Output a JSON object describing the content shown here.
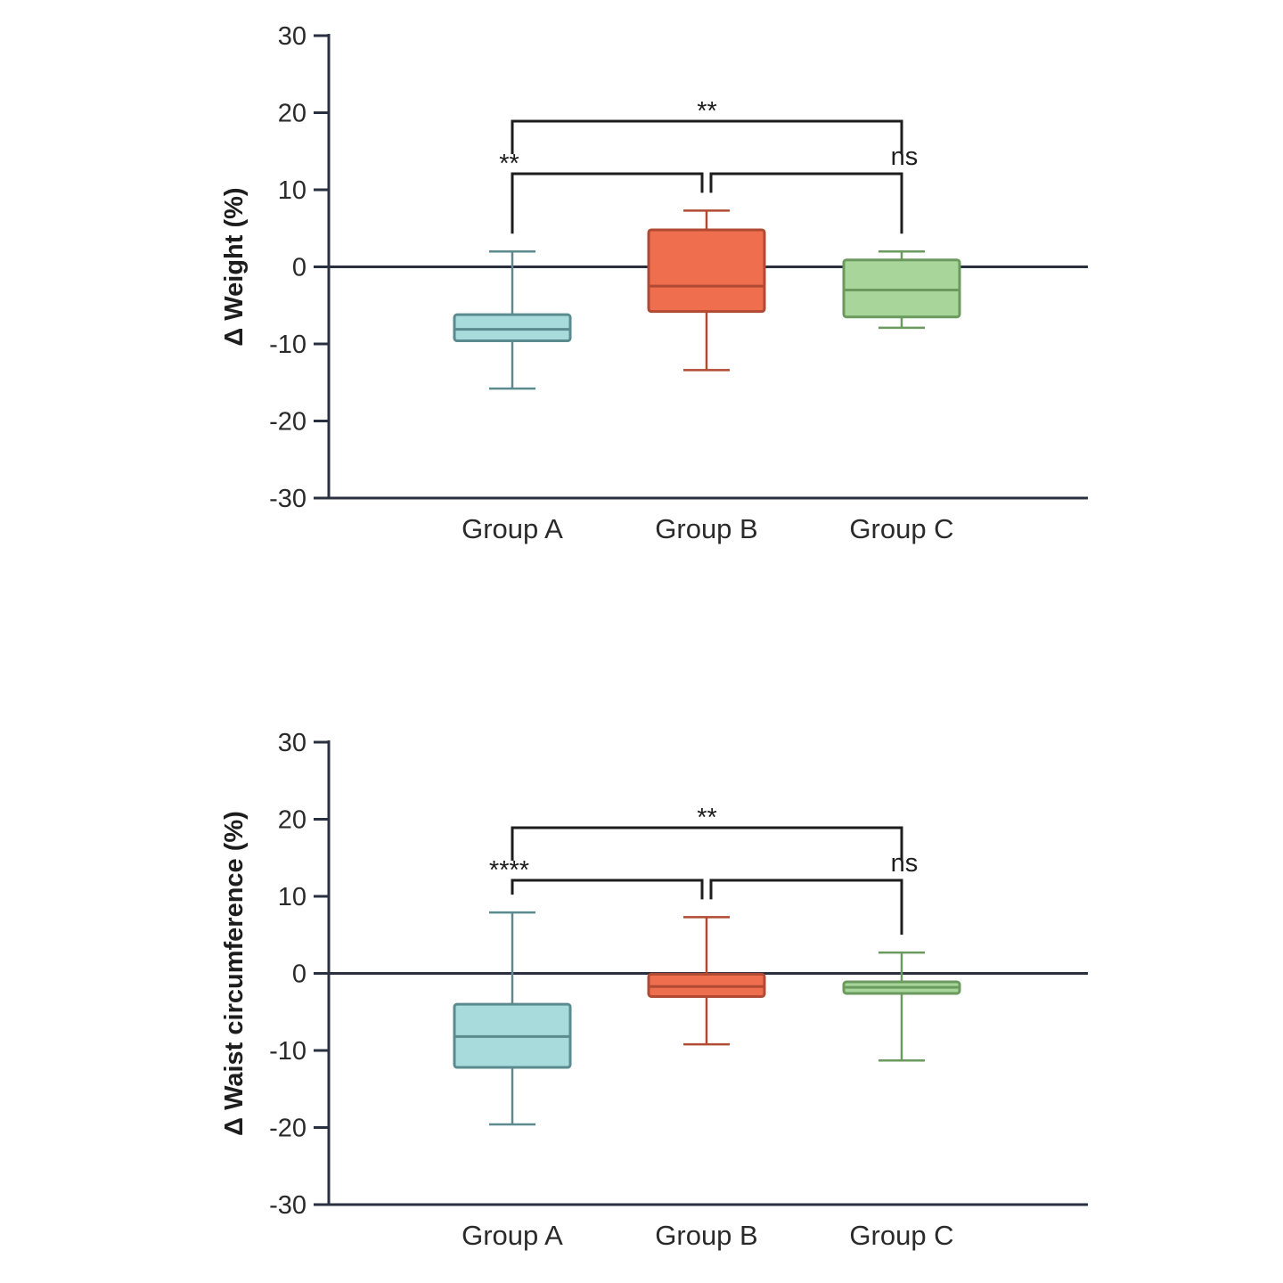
{
  "chart_data": [
    {
      "type": "box",
      "ylabel": "Δ Weight (%)",
      "ylim": [
        -30,
        30
      ],
      "yticks": [
        30,
        20,
        10,
        0,
        -10,
        -20,
        -30
      ],
      "categories": [
        "Group A",
        "Group B",
        "Group C"
      ],
      "colors": {
        "Group A": {
          "fill": "#a8dcdc",
          "stroke": "#5b8a8f"
        },
        "Group B": {
          "fill": "#ee6e4e",
          "stroke": "#b04a33"
        },
        "Group C": {
          "fill": "#a8d69a",
          "stroke": "#6a9a5e"
        }
      },
      "boxes": [
        {
          "category": "Group A",
          "min": -15.8,
          "q1": -9.6,
          "median": -8.1,
          "q3": -6.2,
          "max": 2.0
        },
        {
          "category": "Group B",
          "min": -13.4,
          "q1": -5.8,
          "median": -2.5,
          "q3": 4.8,
          "max": 7.3
        },
        {
          "category": "Group C",
          "min": -7.9,
          "q1": -6.5,
          "median": -3.0,
          "q3": 0.9,
          "max": 2.0
        }
      ],
      "comparisons": [
        {
          "from": "Group A",
          "to": "Group B",
          "label": "**"
        },
        {
          "from": "Group B",
          "to": "Group C",
          "label": "ns"
        },
        {
          "from": "Group A",
          "to": "Group C",
          "label": "**"
        }
      ]
    },
    {
      "type": "box",
      "ylabel": "Δ Waist circumference (%)",
      "ylim": [
        -30,
        30
      ],
      "yticks": [
        30,
        20,
        10,
        0,
        -10,
        -20,
        -30
      ],
      "categories": [
        "Group A",
        "Group B",
        "Group C"
      ],
      "colors": {
        "Group A": {
          "fill": "#a8dcdc",
          "stroke": "#5b8a8f"
        },
        "Group B": {
          "fill": "#ee6e4e",
          "stroke": "#b04a33"
        },
        "Group C": {
          "fill": "#a8d69a",
          "stroke": "#6a9a5e"
        }
      },
      "boxes": [
        {
          "category": "Group A",
          "min": -19.6,
          "q1": -12.2,
          "median": -8.2,
          "q3": -4.0,
          "max": 7.9
        },
        {
          "category": "Group B",
          "min": -9.2,
          "q1": -3.0,
          "median": -1.7,
          "q3": -0.1,
          "max": 7.3
        },
        {
          "category": "Group C",
          "min": -11.3,
          "q1": -2.6,
          "median": -1.8,
          "q3": -1.1,
          "max": 2.7
        }
      ],
      "comparisons": [
        {
          "from": "Group A",
          "to": "Group B",
          "label": "****"
        },
        {
          "from": "Group B",
          "to": "Group C",
          "label": "ns"
        },
        {
          "from": "Group A",
          "to": "Group C",
          "label": "**"
        }
      ]
    }
  ]
}
